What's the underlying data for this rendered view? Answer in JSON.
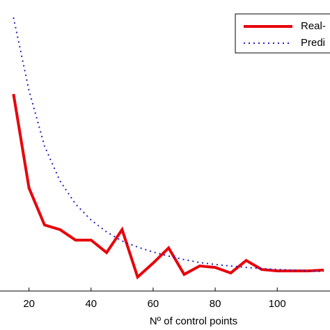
{
  "chart_data": {
    "type": "line",
    "xlabel": "Nº of control points",
    "x": [
      15,
      20,
      25,
      30,
      35,
      40,
      45,
      50,
      55,
      60,
      65,
      70,
      75,
      80,
      85,
      90,
      95,
      100,
      105,
      110,
      115
    ],
    "series": [
      {
        "name": "Real-",
        "color": "#e8000b",
        "style": "solid",
        "values": [
          67.7,
          35.4,
          22.7,
          21.1,
          17.5,
          17.5,
          13.2,
          21.1,
          4.8,
          9.6,
          14.8,
          5.7,
          8.6,
          8.1,
          6.2,
          10.5,
          7.4,
          6.9,
          6.9,
          6.9,
          7.2
        ]
      },
      {
        "name": "Predi",
        "color": "#1f1fbf",
        "style": "dotted",
        "values": [
          94.0,
          68.9,
          49.8,
          37.8,
          29.9,
          24.4,
          20.3,
          17.2,
          15.1,
          13.4,
          12.0,
          10.8,
          9.8,
          9.1,
          8.6,
          8.1,
          7.7,
          7.4,
          7.2,
          6.9,
          6.7
        ]
      }
    ],
    "xlim": [
      12,
      117
    ],
    "xticks": [
      20,
      40,
      60,
      80,
      100
    ],
    "ylim": [
      0,
      100
    ],
    "legend": "upper right"
  }
}
